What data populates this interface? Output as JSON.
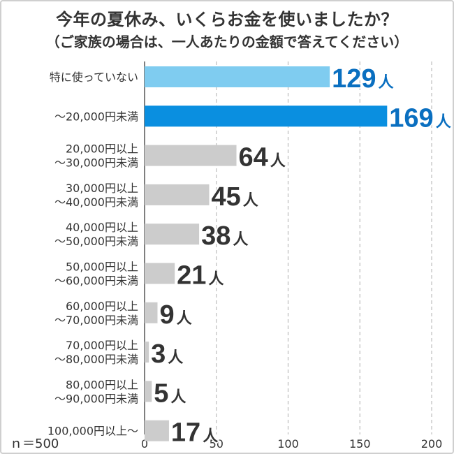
{
  "title": "今年の夏休み、いくらお金を使いましたか？",
  "subtitle": "（ご家族の場合は、一人あたりの金額で答えてください）",
  "sample_note": "ｎ＝500",
  "colors": {
    "highlight_light": "#7fccf0",
    "highlight": "#0a8fe0",
    "bar_default": "#cccccc",
    "label_highlight": "#0a6fc0",
    "label_default": "#333333",
    "grid": "#bdbdbd"
  },
  "chart_data": {
    "type": "bar",
    "orientation": "horizontal",
    "title": "今年の夏休み、いくらお金を使いましたか？",
    "subtitle": "（ご家族の場合は、一人あたりの金額で答えてください）",
    "categories": [
      [
        "特に使っていない"
      ],
      [
        "～20,000円未満"
      ],
      [
        "20,000円以上",
        "～30,000円未満"
      ],
      [
        "30,000円以上",
        "～40,000円未満"
      ],
      [
        "40,000円以上",
        "～50,000円未満"
      ],
      [
        "50,000円以上",
        "～60,000円未満"
      ],
      [
        "60,000円以上",
        "～70,000円未満"
      ],
      [
        "70,000円以上",
        "～80,000円未満"
      ],
      [
        "80,000円以上",
        "～90,000円未満"
      ],
      [
        "100,000円以上～"
      ]
    ],
    "values": [
      129,
      169,
      64,
      45,
      38,
      21,
      9,
      3,
      5,
      17
    ],
    "value_unit": "人",
    "bar_styles": [
      "highlight_light",
      "highlight",
      "default",
      "default",
      "default",
      "default",
      "default",
      "default",
      "default",
      "default"
    ],
    "xlim": [
      0,
      200
    ],
    "xticks": [
      0,
      50,
      100,
      150,
      200
    ],
    "grid": "dashed vertical",
    "legend": "none"
  }
}
